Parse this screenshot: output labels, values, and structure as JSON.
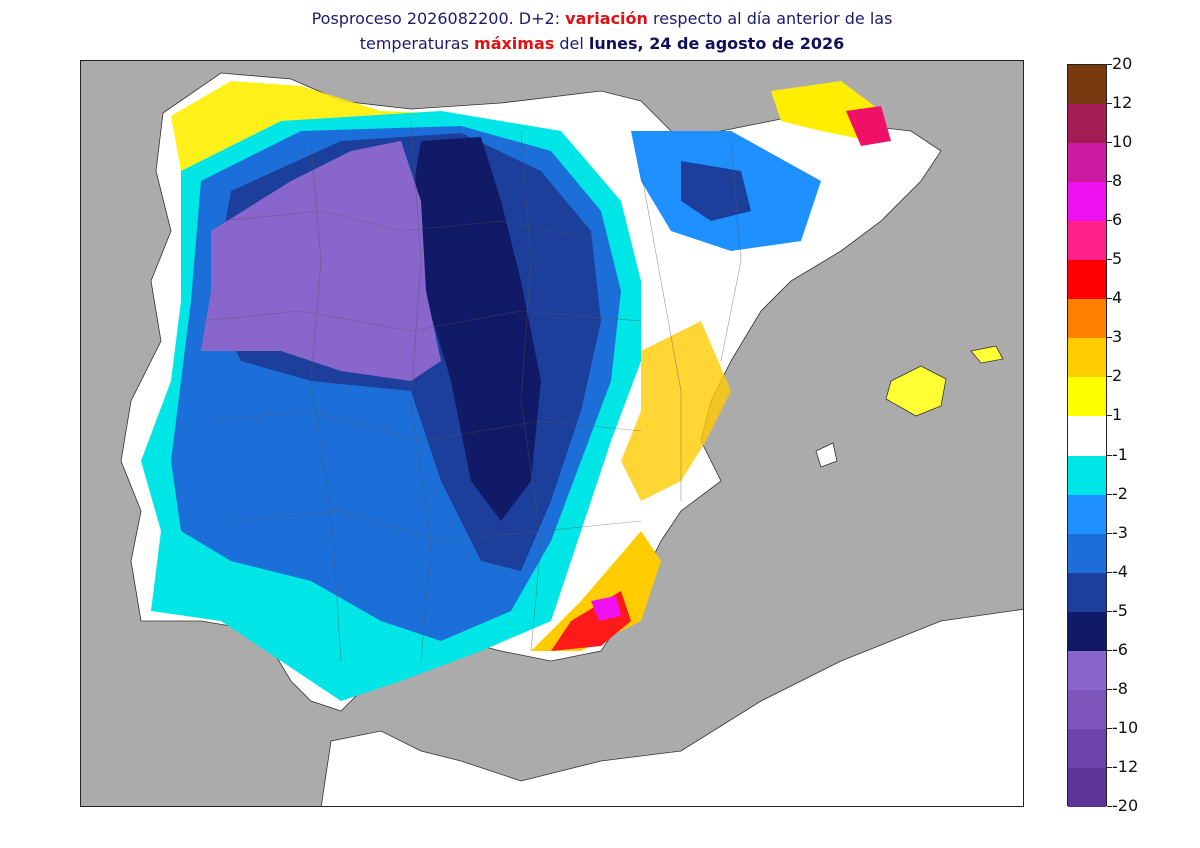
{
  "title": {
    "line1_a": "Posproceso 2026082200. D+2: ",
    "line1_b": "variación",
    "line1_c": " respecto al día anterior de las",
    "line2_a": "temperaturas ",
    "line2_b": "máximas",
    "line2_c": " del ",
    "line2_d": "lunes, 24 de agosto de 2026"
  },
  "legend": {
    "labels": [
      "20",
      "12",
      "10",
      "8",
      "6",
      "5",
      "4",
      "3",
      "2",
      "1",
      "-1",
      "-2",
      "-3",
      "-4",
      "-5",
      "-6",
      "-8",
      "-10",
      "-12",
      "-20"
    ],
    "colors": [
      "#7a3a10",
      "#a31c55",
      "#cc1aa0",
      "#ee10ee",
      "#ff2288",
      "#ff0000",
      "#ff8000",
      "#ffcc00",
      "#ffff00",
      "#ffffff",
      "#00e5e5",
      "#1e90ff",
      "#1c6fd8",
      "#1d3f9c",
      "#111a66",
      "#8866cc",
      "#7e55bb",
      "#6c44aa",
      "#5c3396"
    ]
  },
  "map": {
    "sea_color": "#ababab",
    "land_color": "#ffffff"
  }
}
